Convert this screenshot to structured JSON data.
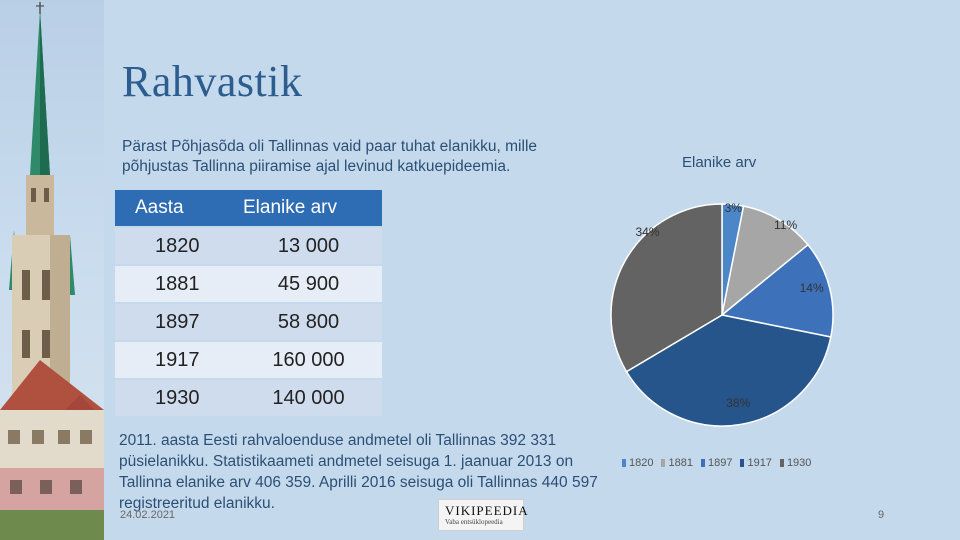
{
  "slide": {
    "title": "Rahvastik",
    "intro": "Pärast Põhjasõda oli Tallinnas vaid paar tuhat elanikku, mille põhjustas Tallinna piiramise ajal levinud katkuepideemia.",
    "table": {
      "headers": [
        "Aasta",
        "Elanike arv"
      ],
      "rows": [
        {
          "year": "1820",
          "value": "13 000"
        },
        {
          "year": "1881",
          "value": "45 900"
        },
        {
          "year": "1897",
          "value": "58 800"
        },
        {
          "year": "1917",
          "value": "160 000"
        },
        {
          "year": "1930",
          "value": "140 000"
        }
      ]
    },
    "bottom_text": "2011. aasta Eesti rahvaloenduse andmetel oli Tallinnas 392 331 püsielanikku. Statistikaameti andmetel seisuga 1. jaanuar 2013 on Tallinna elanike arv 406 359. Aprilli 2016 seisuga oli Tallinnas 440 597 registreeritud elanikku.",
    "date": "24.02.2021",
    "page_number": "9",
    "logo": {
      "line1": "VIKIPEEDIA",
      "line2": "Vaba entsüklopeedia"
    }
  },
  "chart_data": {
    "type": "pie",
    "title": "Elanike arv",
    "categories": [
      "1820",
      "1881",
      "1897",
      "1917",
      "1930"
    ],
    "values": [
      13000,
      45900,
      58800,
      160000,
      140000
    ],
    "percent_labels": [
      "3%",
      "11%",
      "14%",
      "38%",
      "34%"
    ],
    "colors": [
      "#4a86c8",
      "#a6a6a6",
      "#3d72bb",
      "#25558a",
      "#636363"
    ],
    "legend": "bottom"
  }
}
